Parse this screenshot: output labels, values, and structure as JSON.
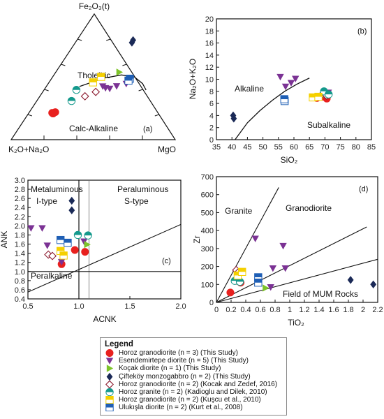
{
  "legend": {
    "title": "Legend",
    "entries": [
      {
        "label": "Horoz granodiorite (n = 3) (This Study)",
        "marker": "circle",
        "color": "#e8201e"
      },
      {
        "label": "Esendemirtepe diorite (n = 5) (This Study)",
        "marker": "tri-down",
        "color": "#7b3294"
      },
      {
        "label": "Koçak diorite (n = 1) (This Study)",
        "marker": "tri-right",
        "color": "#7ec42a"
      },
      {
        "label": "Çifteköy monzogabbro (n = 2) (This Study)",
        "marker": "diamond",
        "color": "#1b2a57"
      },
      {
        "label": "Horoz granodiorite (n = 2) (Kocak and Zedef, 2016)",
        "marker": "diamond-open",
        "color": "#8b1a2e"
      },
      {
        "label": "Horoz granite (n = 2) (Kadioglu and Dilek, 2010)",
        "marker": "circle-half",
        "color": "#14998c"
      },
      {
        "label": "Horoz granodiorite (n = 2) (Kuşcu et al., 2010)",
        "marker": "square-half",
        "color": "#f5d000"
      },
      {
        "label": "Ulukışla diorite (n = 2) (Kurt et al., 2008)",
        "marker": "square-half",
        "color": "#1f5fb5"
      }
    ]
  },
  "chart_data": [
    {
      "type": "scatter",
      "subtype": "ternary",
      "panel": "(a)",
      "vertices": [
        "Fe2O3(t)",
        "K2O+Na2O",
        "MgO"
      ],
      "vertex_labels": {
        "top": "Fe₂O₃(t)",
        "left": "K₂O+Na₂O",
        "right": "MgO"
      },
      "fields": [
        "Tholeiitic",
        "Calc-Alkaline"
      ],
      "boundary": [
        [
          20.2,
          42.3
        ],
        [
          31.3,
          48.8
        ],
        [
          41.1,
          51.5
        ],
        [
          50,
          49.8
        ],
        [
          57.5,
          44.6
        ],
        [
          62.2,
          39.5
        ]
      ],
      "series": [
        {
          "name": "Horoz granodiorite (n = 3) (This Study)",
          "points": [
            [
              14.2,
              21.3
            ],
            [
              15,
              20.8
            ],
            [
              15.8,
              21.9
            ]
          ]
        },
        {
          "name": "Esendemirtepe diorite (n = 5) (This Study)",
          "points": [
            [
              34.3,
              42.5
            ],
            [
              36.7,
              41.1
            ],
            [
              39.5,
              40.6
            ],
            [
              42.7,
              42.6
            ],
            [
              47.6,
              44.5
            ]
          ]
        },
        {
          "name": "Koçak diorite (n = 1) (This Study)",
          "points": [
            [
              38.7,
              53.7
            ]
          ]
        },
        {
          "name": "Çifteköy monzogabbro (n = 2) (This Study)",
          "points": [
            [
              34.2,
              79.2
            ],
            [
              34.5,
              77.2
            ]
          ]
        },
        {
          "name": "Horoz granodiorite (n = 2) (Kocak and Zedef, 2016)",
          "points": [
            [
              27.5,
              34.5
            ],
            [
              32.3,
              38
            ]
          ]
        },
        {
          "name": "Horoz granite (n = 2) (Kadioglu and Dilek, 2010)",
          "points": [
            [
              21.2,
              30.8
            ],
            [
              19.7,
              39.6
            ]
          ]
        },
        {
          "name": "Horoz granodiorite (n = 2) (Kuşcu et al., 2010)",
          "points": [
            [
              29.5,
              50
            ],
            [
              26.8,
              45.6
            ]
          ]
        },
        {
          "name": "Ulukışla diorite (n = 2) (Kurt et al., 2008)",
          "points": [
            [
              47.8,
              48.5
            ],
            [
              47.7,
              47
            ]
          ]
        }
      ]
    },
    {
      "type": "scatter",
      "panel": "(b)",
      "xlabel": "SiO₂",
      "ylabel": "Na₂O+K₂O",
      "xlim": [
        35,
        85
      ],
      "ylim": [
        0,
        20
      ],
      "xticks": [
        35,
        40,
        45,
        50,
        55,
        60,
        65,
        70,
        75,
        80,
        85
      ],
      "yticks": [
        0,
        2,
        4,
        6,
        8,
        10,
        12,
        14,
        16,
        18,
        20
      ],
      "fields": [
        "Alkaline",
        "Subalkaline"
      ],
      "boundary": [
        [
          41,
          0
        ],
        [
          45,
          2.8
        ],
        [
          49,
          4.8
        ],
        [
          53,
          6.5
        ],
        [
          57,
          8
        ],
        [
          61,
          9.2
        ],
        [
          65,
          10.2
        ]
      ],
      "series": [
        {
          "name": "Horoz granodiorite (n = 3) (This Study)",
          "points": [
            [
              67.4,
              6.9
            ],
            [
              69.7,
              7.1
            ],
            [
              70.6,
              6.8
            ]
          ]
        },
        {
          "name": "Esendemirtepe diorite (n = 5) (This Study)",
          "points": [
            [
              55.6,
              10.4
            ],
            [
              57.3,
              8.8
            ],
            [
              59.1,
              9.4
            ],
            [
              60.5,
              10.1
            ],
            [
              71.1,
              7.8
            ]
          ]
        },
        {
          "name": "Koçak diorite (n = 1) (This Study)",
          "points": [
            [
              70.2,
              7.5
            ]
          ]
        },
        {
          "name": "Çifteköy monzogabbro (n = 2) (This Study)",
          "points": [
            [
              40.4,
              4
            ],
            [
              40.6,
              3.5
            ]
          ]
        },
        {
          "name": "Horoz granodiorite (n = 2) (Kocak and Zedef, 2016)",
          "points": [
            [
              68.5,
              7.2
            ],
            [
              70.5,
              7.3
            ]
          ]
        },
        {
          "name": "Horoz granite (n = 2) (Kadioglu and Dilek, 2010)",
          "points": [
            [
              69.7,
              8
            ],
            [
              71.2,
              7.5
            ]
          ]
        },
        {
          "name": "Horoz granodiorite (n = 2) (Kuşcu et al., 2010)",
          "points": [
            [
              66.1,
              7
            ],
            [
              67.9,
              7.1
            ]
          ]
        },
        {
          "name": "Ulukışla diorite (n = 2) (Kurt et al., 2008)",
          "points": [
            [
              57,
              6.4
            ],
            [
              56.9,
              6.7
            ]
          ]
        }
      ]
    },
    {
      "type": "scatter",
      "panel": "(c)",
      "xlabel": "ACNK",
      "ylabel": "ANK",
      "xlim": [
        0.5,
        2.0
      ],
      "ylim": [
        0.4,
        3.0
      ],
      "xticks": [
        0.5,
        1.0,
        1.5,
        2.0
      ],
      "yticks": [
        0.4,
        0.6,
        0.8,
        1.0,
        1.2,
        1.4,
        1.6,
        1.8,
        2.0,
        2.2,
        2.4,
        2.6,
        2.8,
        3.0
      ],
      "fields": [
        "Metaluminous",
        "I-type",
        "Peraluminous",
        "S-type",
        "Peralkaline"
      ],
      "lines": {
        "vertical": [
          1.0,
          1.1
        ],
        "horizontal": 1.0,
        "diagonal": [
          [
            0.5,
            0.55
          ],
          [
            2.0,
            2.03
          ]
        ]
      },
      "series": [
        {
          "name": "Horoz granodiorite (n = 3) (This Study)",
          "points": [
            [
              0.83,
              1.16
            ],
            [
              0.96,
              1.47
            ],
            [
              1.06,
              1.43
            ]
          ]
        },
        {
          "name": "Esendemirtepe diorite (n = 5) (This Study)",
          "points": [
            [
              0.53,
              1.95
            ],
            [
              0.64,
              1.95
            ],
            [
              0.69,
              1.57
            ],
            [
              0.83,
              1.21
            ],
            [
              1.05,
              1.66
            ]
          ]
        },
        {
          "name": "Koçak diorite (n = 1) (This Study)",
          "points": [
            [
              1.08,
              1.59
            ]
          ]
        },
        {
          "name": "Çifteköy monzogabbro (n = 2) (This Study)",
          "points": [
            [
              0.93,
              2.55
            ],
            [
              0.93,
              2.34
            ]
          ]
        },
        {
          "name": "Horoz granodiorite (n = 2) (Kocak and Zedef, 2016)",
          "points": [
            [
              0.7,
              1.37
            ],
            [
              0.74,
              1.34
            ]
          ]
        },
        {
          "name": "Horoz granite (n = 2) (Kadioglu and Dilek, 2010)",
          "points": [
            [
              0.99,
              1.8
            ],
            [
              1.09,
              1.79
            ]
          ]
        },
        {
          "name": "Horoz granodiorite (n = 2) (Kuşcu et al., 2010)",
          "points": [
            [
              0.82,
              1.45
            ],
            [
              0.85,
              1.35
            ]
          ]
        },
        {
          "name": "Ulukışla diorite (n = 2) (Kurt et al., 2008)",
          "points": [
            [
              0.82,
              1.69
            ],
            [
              0.89,
              1.63
            ]
          ]
        }
      ]
    },
    {
      "type": "scatter",
      "panel": "(d)",
      "xlabel": "TiO₂",
      "ylabel": "Zr",
      "xlim": [
        0,
        2.2
      ],
      "ylim": [
        0,
        700
      ],
      "xticks": [
        0,
        0.2,
        0.4,
        0.6,
        0.8,
        1.0,
        1.2,
        1.4,
        1.6,
        1.8,
        2.0,
        2.2
      ],
      "yticks": [
        0,
        100,
        200,
        300,
        400,
        500,
        600,
        700
      ],
      "fields": [
        "Granite",
        "Granodiorite",
        "Field of MUM Rocks"
      ],
      "lines": [
        [
          [
            0,
            0
          ],
          [
            0.85,
            640
          ]
        ],
        [
          [
            0,
            0
          ],
          [
            2.05,
            420
          ]
        ],
        [
          [
            0,
            0
          ],
          [
            2.2,
            240
          ]
        ]
      ],
      "series": [
        {
          "name": "Horoz granodiorite (n = 3) (This Study)",
          "points": [
            [
              0.19,
              55
            ],
            [
              0.27,
              120
            ],
            [
              0.33,
              110
            ]
          ]
        },
        {
          "name": "Esendemirtepe diorite (n = 5) (This Study)",
          "points": [
            [
              0.53,
              355
            ],
            [
              0.91,
              315
            ],
            [
              0.94,
              190
            ],
            [
              0.77,
              190
            ],
            [
              0.74,
              85
            ]
          ]
        },
        {
          "name": "Koçak diorite (n = 1) (This Study)",
          "points": [
            [
              0.67,
              80
            ]
          ]
        },
        {
          "name": "Çifteköy monzogabbro (n = 2) (This Study)",
          "points": [
            [
              1.83,
              125
            ],
            [
              2.14,
              100
            ]
          ]
        },
        {
          "name": "Horoz granodiorite (n = 2) (Kocak and Zedef, 2016)",
          "points": [
            [
              0.27,
              180
            ],
            [
              0.29,
              165
            ]
          ]
        },
        {
          "name": "Horoz granite (n = 2) (Kadioglu and Dilek, 2010)",
          "points": [
            [
              0.25,
              120
            ],
            [
              0.32,
              115
            ]
          ]
        },
        {
          "name": "Horoz granodiorite (n = 2) (Kuşcu et al., 2010)",
          "points": [
            [
              0.29,
              150
            ],
            [
              0.35,
              170
            ]
          ]
        },
        {
          "name": "Ulukışla diorite (n = 2) (Kurt et al., 2008)",
          "points": [
            [
              0.57,
              140
            ],
            [
              0.57,
              110
            ]
          ]
        }
      ]
    }
  ]
}
